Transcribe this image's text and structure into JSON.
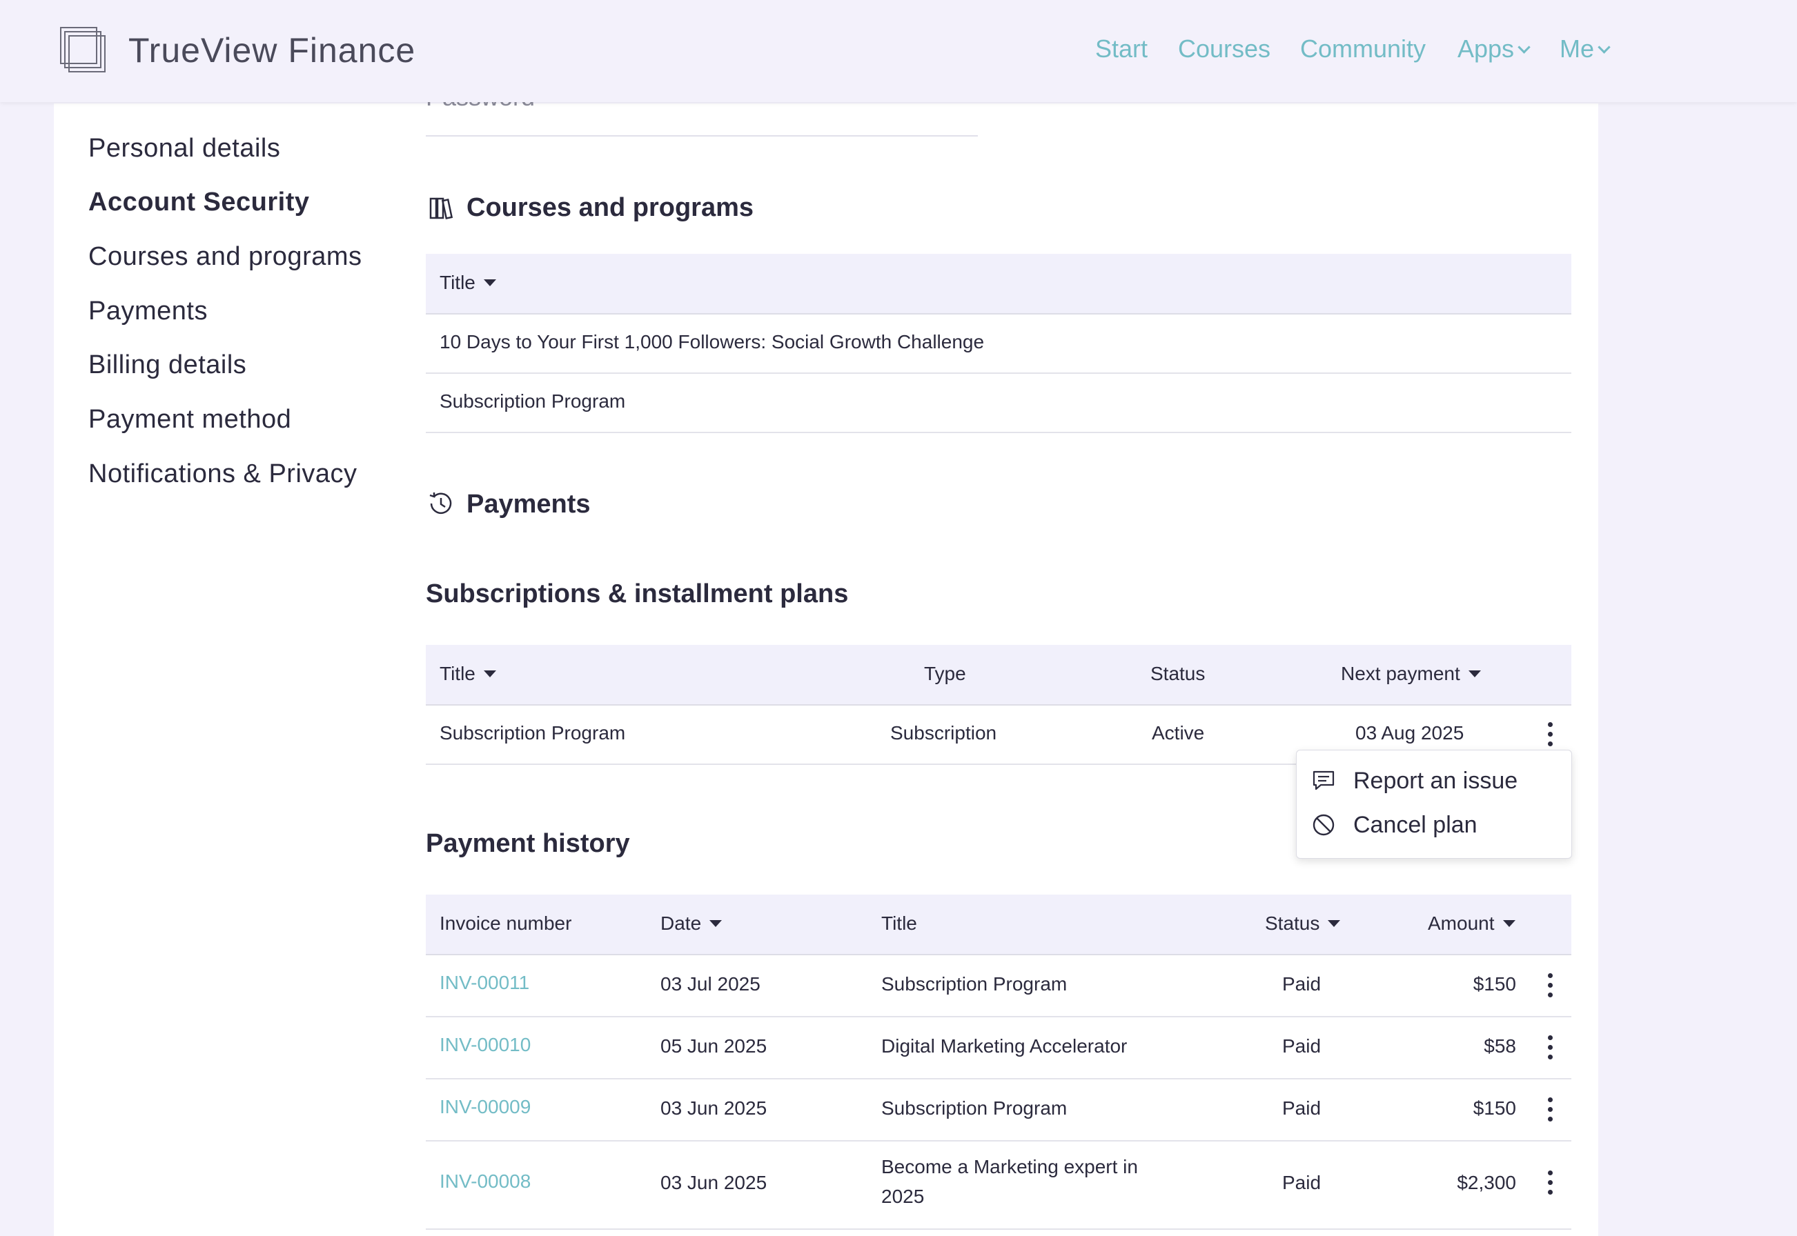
{
  "header": {
    "brand": "TrueView Finance",
    "nav": [
      {
        "label": "Start"
      },
      {
        "label": "Courses"
      },
      {
        "label": "Community"
      },
      {
        "label": "Apps"
      },
      {
        "label": "Me"
      }
    ]
  },
  "sidebar": {
    "items": [
      {
        "label": "Personal details"
      },
      {
        "label": "Account Security",
        "active": true
      },
      {
        "label": "Courses and programs"
      },
      {
        "label": "Payments"
      },
      {
        "label": "Billing details"
      },
      {
        "label": "Payment method"
      },
      {
        "label": "Notifications & Privacy"
      }
    ]
  },
  "password": {
    "label": "Password"
  },
  "courses": {
    "title": "Courses and programs",
    "header_title": "Title",
    "rows": [
      {
        "title": "10 Days to Your First 1,000 Followers: Social Growth Challenge"
      },
      {
        "title": "Subscription Program"
      }
    ]
  },
  "payments": {
    "title": "Payments",
    "subscriptions": {
      "title": "Subscriptions & installment plans",
      "headers": {
        "title": "Title",
        "type": "Type",
        "status": "Status",
        "next": "Next payment"
      },
      "rows": [
        {
          "title": "Subscription Program",
          "type": "Subscription",
          "status": "Active",
          "next": "03 Aug 2025"
        }
      ],
      "menu": {
        "report": "Report an issue",
        "cancel": "Cancel plan"
      }
    },
    "history": {
      "title": "Payment history",
      "headers": {
        "invoice": "Invoice number",
        "date": "Date",
        "title": "Title",
        "status": "Status",
        "amount": "Amount"
      },
      "rows": [
        {
          "invoice": "INV-00011",
          "date": "03 Jul 2025",
          "title": "Subscription Program",
          "status": "Paid",
          "amount": "$150"
        },
        {
          "invoice": "INV-00010",
          "date": "05 Jun 2025",
          "title": "Digital Marketing Accelerator",
          "status": "Paid",
          "amount": "$58"
        },
        {
          "invoice": "INV-00009",
          "date": "03 Jun 2025",
          "title": "Subscription Program",
          "status": "Paid",
          "amount": "$150"
        },
        {
          "invoice": "INV-00008",
          "date": "03 Jun 2025",
          "title_line1": "Become a Marketing expert in",
          "title_line2": "2025",
          "status": "Paid",
          "amount": "$2,300"
        }
      ]
    }
  },
  "colors": {
    "accent": "#73bcc6",
    "header_bg": "#f3f1fb",
    "table_header_bg": "#f1f0fb",
    "text": "#2b2a3d"
  }
}
